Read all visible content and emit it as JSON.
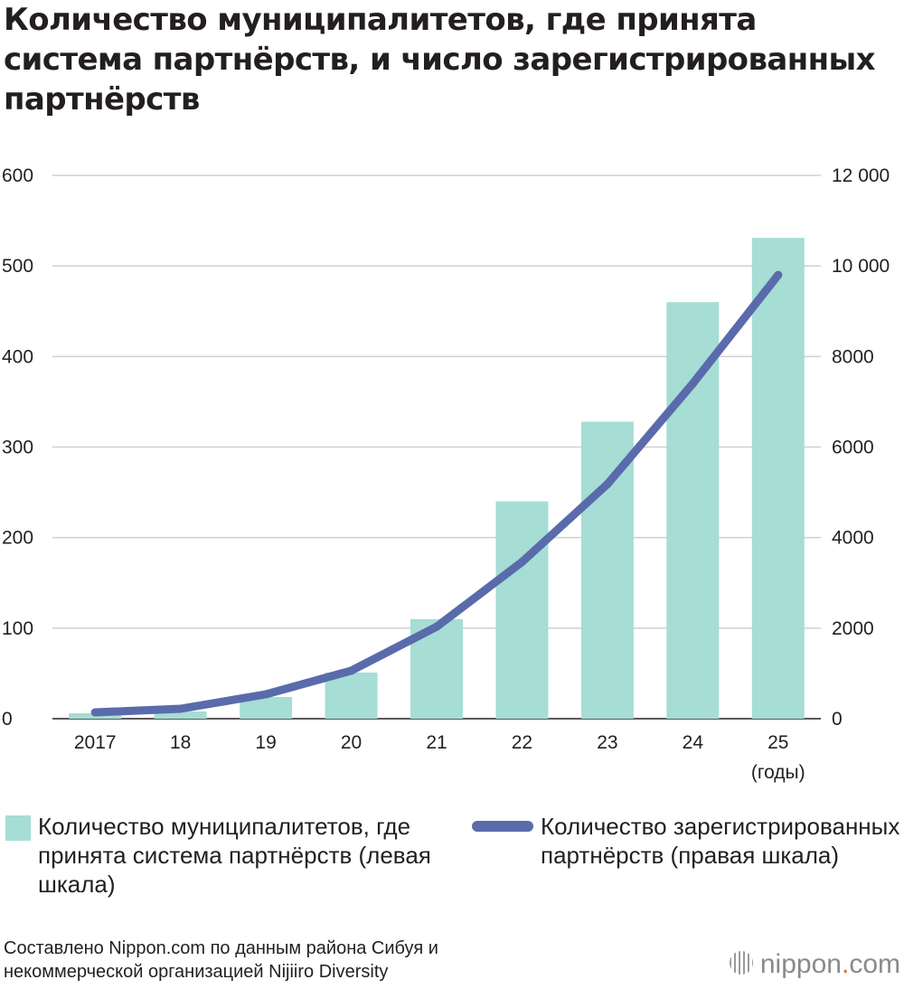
{
  "title": "Количество муниципалитетов, где принята система партнёрств, и число зарегистрированных партнёрств",
  "chart_data": {
    "type": "bar",
    "categories": [
      "2017",
      "18",
      "19",
      "20",
      "21",
      "22",
      "23",
      "24",
      "25"
    ],
    "x_unit_label": "(годы)",
    "series": [
      {
        "name": "Количество муниципалитетов, где принята система партнёрств (левая шкала)",
        "type": "bar",
        "axis": "left",
        "color": "#a6ddd5",
        "values": [
          6,
          8,
          24,
          51,
          110,
          240,
          328,
          460,
          531
        ]
      },
      {
        "name": "Количество зарегистрированных партнёрств (правая шкала)",
        "type": "line",
        "axis": "right",
        "color": "#5a6bab",
        "values": [
          140,
          220,
          540,
          1060,
          2030,
          3460,
          5180,
          7400,
          9800
        ]
      }
    ],
    "y_left": {
      "min": 0,
      "max": 600,
      "ticks": [
        "0",
        "100",
        "200",
        "300",
        "400",
        "500",
        "600"
      ]
    },
    "y_right": {
      "min": 0,
      "max": 12000,
      "ticks": [
        "0",
        "2000",
        "4000",
        "6000",
        "8000",
        "10 000",
        "12 000"
      ]
    },
    "grid": true
  },
  "legend": {
    "bar_label": "Количество муниципалитетов, где принята система партнёрств (левая шкала)",
    "line_label": "Количество зарегистрированных партнёрств (правая шкала)"
  },
  "source": "Составлено Nippon.com по данным района Сибуя и некоммерческой организацией Nijiiro Diversity",
  "logo": {
    "main": "nippon",
    "dot": ".",
    "suffix": "com"
  }
}
